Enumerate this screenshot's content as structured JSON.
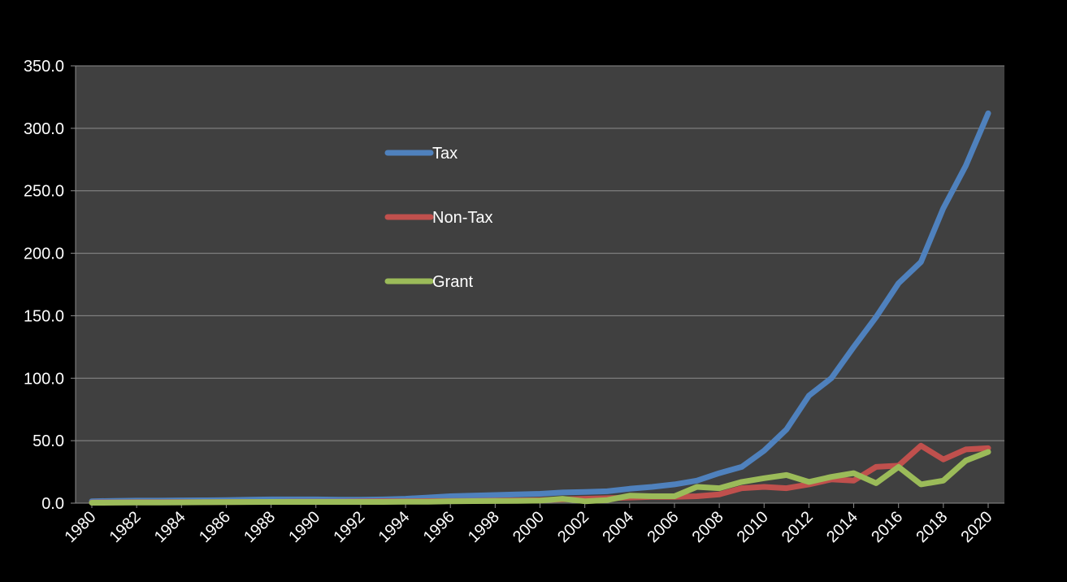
{
  "chart_data": {
    "type": "line",
    "title": "",
    "xlabel": "",
    "ylabel": "",
    "ylim": [
      0,
      350
    ],
    "y_ticks": [
      "0.0",
      "50.0",
      "100.0",
      "150.0",
      "200.0",
      "250.0",
      "300.0",
      "350.0"
    ],
    "x_tick_labels": [
      "1980",
      "1982",
      "1984",
      "1986",
      "1988",
      "1990",
      "1992",
      "1994",
      "1996",
      "1998",
      "2000",
      "2002",
      "2004",
      "2006",
      "2008",
      "2010",
      "2012",
      "2014",
      "2016",
      "2018",
      "2020"
    ],
    "x": [
      1980,
      1981,
      1982,
      1983,
      1984,
      1985,
      1986,
      1987,
      1988,
      1989,
      1990,
      1991,
      1992,
      1993,
      1994,
      1995,
      1996,
      1997,
      1998,
      1999,
      2000,
      2001,
      2002,
      2003,
      2004,
      2005,
      2006,
      2007,
      2008,
      2009,
      2010,
      2011,
      2012,
      2013,
      2014,
      2015,
      2016,
      2017,
      2018,
      2019,
      2020
    ],
    "grid": true,
    "legend_position": "upper-left-center",
    "series": [
      {
        "name": "Tax",
        "color": "#4F81BD",
        "values": [
          1.5,
          1.8,
          2.0,
          2.0,
          2.2,
          2.3,
          2.5,
          2.7,
          3.0,
          3.0,
          3.0,
          2.8,
          2.8,
          3.0,
          3.5,
          4.5,
          5.5,
          6.0,
          6.5,
          7.0,
          7.5,
          8.5,
          9.0,
          9.5,
          11.5,
          13.0,
          15.0,
          18.0,
          24.0,
          29.0,
          42.0,
          59.0,
          86.0,
          100.0,
          125.0,
          149.0,
          176.0,
          193.0,
          236.0,
          270.0,
          312.0
        ]
      },
      {
        "name": "Non-Tax",
        "color": "#C0504D",
        "values": [
          0.5,
          0.6,
          0.7,
          0.7,
          0.8,
          0.8,
          0.9,
          1.0,
          1.0,
          1.2,
          1.2,
          1.2,
          1.3,
          1.4,
          1.5,
          1.6,
          1.7,
          1.8,
          2.0,
          2.2,
          2.5,
          3.0,
          3.5,
          4.0,
          4.5,
          5.0,
          5.0,
          5.5,
          7.0,
          12.0,
          13.0,
          12.0,
          15.0,
          19.0,
          18.0,
          29.0,
          30.0,
          46.0,
          35.0,
          43.0,
          44.0
        ]
      },
      {
        "name": "Grant",
        "color": "#9BBB59",
        "values": [
          0.3,
          0.4,
          0.5,
          0.5,
          0.6,
          0.7,
          0.8,
          0.9,
          1.0,
          1.0,
          1.0,
          1.0,
          1.0,
          1.0,
          1.1,
          1.2,
          1.5,
          1.6,
          1.7,
          1.8,
          2.0,
          3.5,
          1.5,
          2.5,
          6.0,
          5.5,
          5.5,
          13.0,
          12.0,
          17.0,
          20.0,
          22.5,
          17.0,
          21.0,
          24.0,
          16.0,
          29.0,
          15.0,
          18.0,
          34.0,
          41.0
        ]
      }
    ]
  }
}
